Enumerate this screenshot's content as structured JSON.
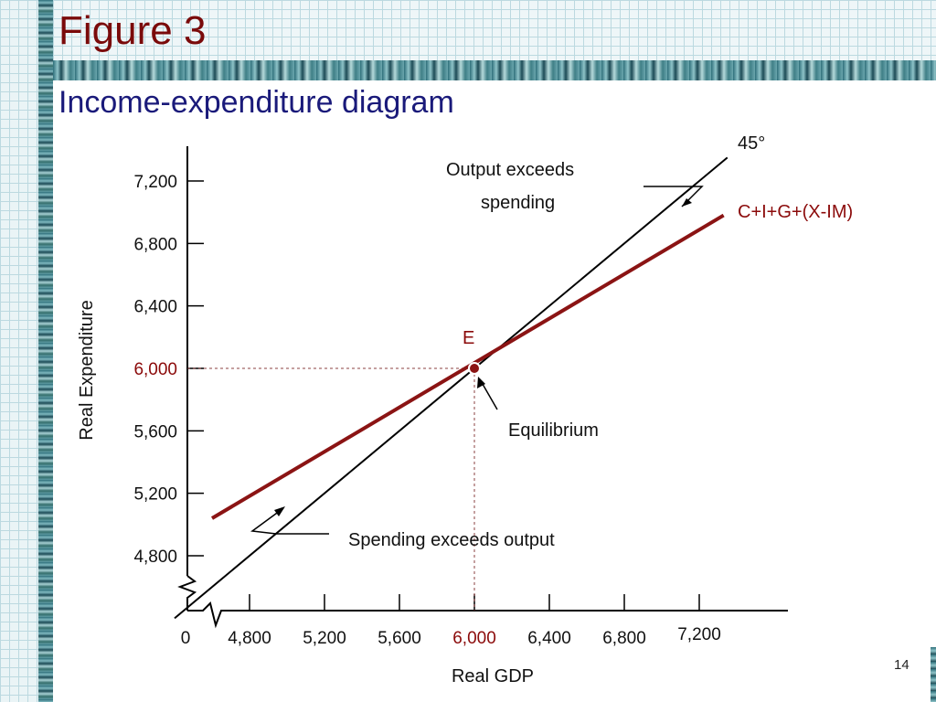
{
  "slide": {
    "title": "Figure 3",
    "subtitle": "Income-expenditure diagram",
    "page_number": "14"
  },
  "colors": {
    "title": "#7a0a0a",
    "subtitle": "#1a1a7a",
    "expenditure_line": "#8b1414",
    "highlight": "#8b0a0a"
  },
  "chart_data": {
    "type": "line",
    "xlabel": "Real GDP",
    "ylabel": "Real Expenditure",
    "x_ticks": [
      "0",
      "4,800",
      "5,200",
      "5,600",
      "6,000",
      "6,400",
      "6,800",
      "7,200"
    ],
    "y_ticks": [
      "4,800",
      "5,200",
      "5,600",
      "6,000",
      "6,400",
      "6,800",
      "7,200"
    ],
    "x_tick_values": [
      4800,
      5200,
      5600,
      6000,
      6400,
      6800,
      7200
    ],
    "y_tick_values": [
      4800,
      5200,
      5600,
      6000,
      6400,
      6800,
      7200
    ],
    "highlight_tick": "6,000",
    "axis_breaks": true,
    "series": [
      {
        "name": "45°",
        "points": [
          [
            4400,
            4400
          ],
          [
            7350,
            7350
          ]
        ]
      },
      {
        "name": "C+I+G+(X-IM)",
        "points": [
          [
            4600,
            5040
          ],
          [
            7330,
            6980
          ]
        ]
      }
    ],
    "equilibrium": {
      "label": "E",
      "x": 6000,
      "y": 6000
    },
    "annotations": {
      "output_exceeds_line1": "Output exceeds",
      "output_exceeds_line2": "spending",
      "equilibrium": "Equilibrium",
      "spending_exceeds": "Spending exceeds  output"
    }
  }
}
